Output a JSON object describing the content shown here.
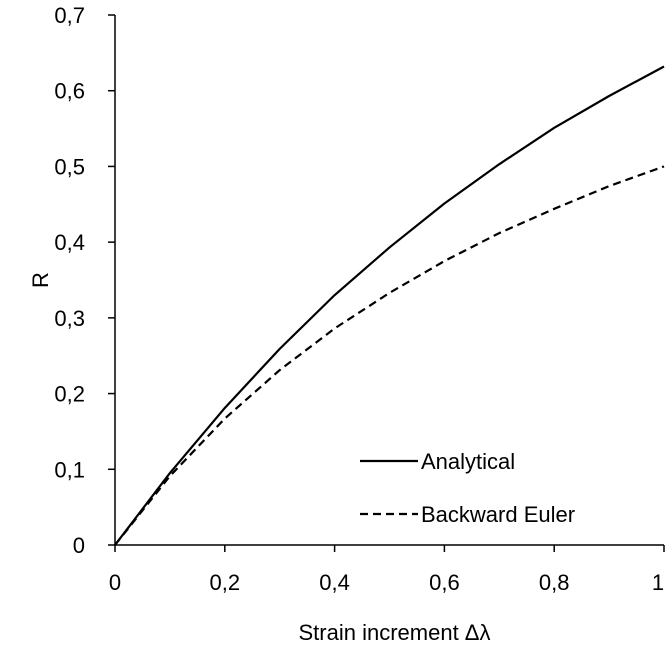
{
  "chart_data": {
    "type": "line",
    "xlabel": "Strain increment Δλ",
    "ylabel": "R",
    "xlim": [
      0,
      1
    ],
    "ylim": [
      0,
      0.7
    ],
    "x_ticks": [
      "0",
      "0,2",
      "0,4",
      "0,6",
      "0,8",
      "1"
    ],
    "y_ticks": [
      "0",
      "0,1",
      "0,2",
      "0,3",
      "0,4",
      "0,5",
      "0,6",
      "0,7"
    ],
    "grid": false,
    "legend_position": "bottom-right",
    "series": [
      {
        "name": "Analytical",
        "style": "solid",
        "color": "#000000",
        "x": [
          0,
          0.1,
          0.2,
          0.3,
          0.4,
          0.5,
          0.6,
          0.7,
          0.8,
          0.9,
          1.0
        ],
        "y": [
          0,
          0.095,
          0.181,
          0.259,
          0.33,
          0.393,
          0.451,
          0.503,
          0.551,
          0.593,
          0.632
        ]
      },
      {
        "name": "Backward Euler",
        "style": "dashed",
        "color": "#000000",
        "x": [
          0,
          0.1,
          0.2,
          0.3,
          0.4,
          0.5,
          0.6,
          0.7,
          0.8,
          0.9,
          1.0
        ],
        "y": [
          0,
          0.091,
          0.167,
          0.231,
          0.286,
          0.333,
          0.375,
          0.412,
          0.444,
          0.474,
          0.5
        ]
      }
    ]
  }
}
